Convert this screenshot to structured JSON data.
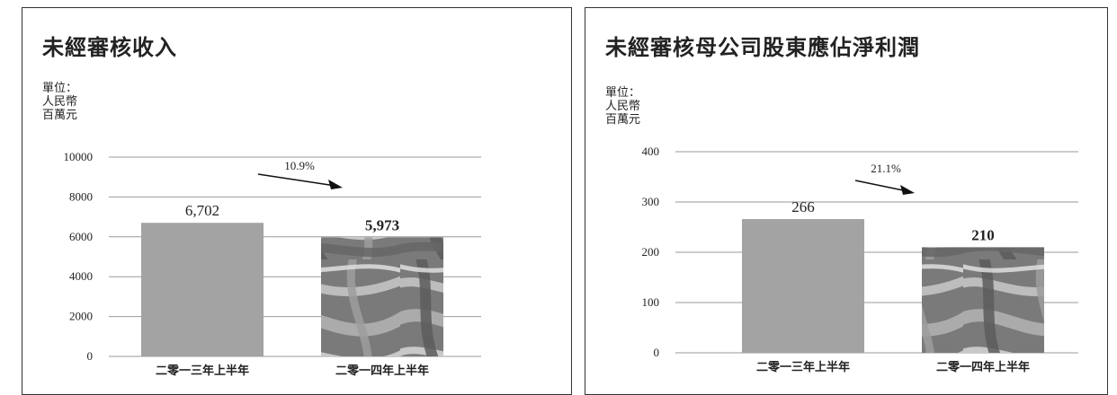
{
  "charts": [
    {
      "title": "未經審核收入",
      "unit": [
        "單位：",
        "人民幣",
        "百萬元"
      ],
      "arrow_label": "10.9%",
      "bar_colors": [
        "#a3a3a3",
        "#808080"
      ],
      "chart_data": {
        "type": "bar",
        "title": "未經審核收入",
        "xlabel": "",
        "ylabel": "單位：人民幣百萬元",
        "categories": [
          "二零一三年上半年",
          "二零一四年上半年"
        ],
        "values": [
          6702,
          5973
        ],
        "data_labels": [
          "6,702",
          "5,973"
        ],
        "ylim": [
          0,
          10000
        ],
        "yticks": [
          0,
          2000,
          4000,
          6000,
          8000,
          10000
        ],
        "grid": true,
        "annotations": [
          "10.9%"
        ]
      }
    },
    {
      "title": "未經審核母公司股東應佔淨利潤",
      "unit": [
        "單位：",
        "人民幣",
        "百萬元"
      ],
      "arrow_label": "21.1%",
      "bar_colors": [
        "#a3a3a3",
        "#808080"
      ],
      "chart_data": {
        "type": "bar",
        "title": "未經審核母公司股東應佔淨利潤",
        "xlabel": "",
        "ylabel": "單位：人民幣百萬元",
        "categories": [
          "二零一三年上半年",
          "二零一四年上半年"
        ],
        "values": [
          266,
          210
        ],
        "data_labels": [
          "266",
          "210"
        ],
        "ylim": [
          0,
          400
        ],
        "yticks": [
          0,
          100,
          200,
          300,
          400
        ],
        "grid": true,
        "annotations": [
          "21.1%"
        ]
      }
    }
  ]
}
